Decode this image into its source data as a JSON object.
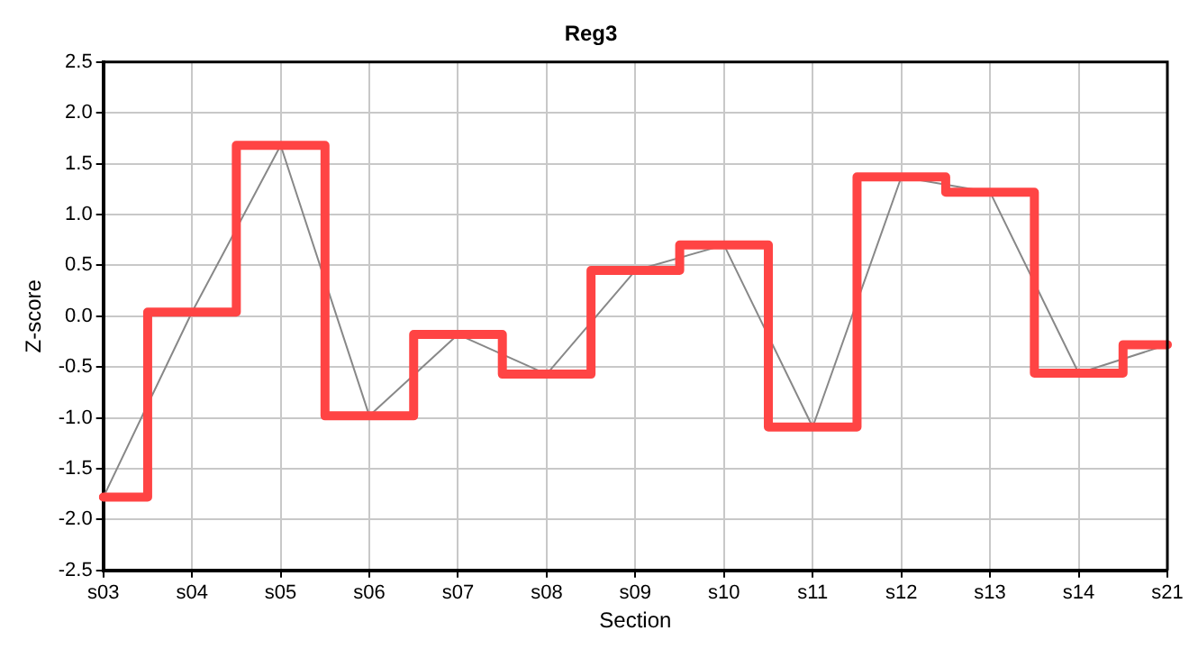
{
  "chart_data": {
    "type": "step",
    "title": "Reg3",
    "xlabel": "Section",
    "ylabel": "Z-score",
    "categories": [
      "s03",
      "s04",
      "s05",
      "s06",
      "s07",
      "s08",
      "s09",
      "s10",
      "s11",
      "s12",
      "s13",
      "s14",
      "s21"
    ],
    "series": [
      {
        "type": "line",
        "color": "#888888",
        "values": [
          -1.78,
          0.04,
          1.68,
          -0.98,
          -0.18,
          -0.57,
          0.45,
          0.7,
          -1.09,
          1.37,
          1.22,
          -0.56,
          -0.28
        ]
      },
      {
        "color": "#ff4444",
        "values": [
          -1.78,
          0.04,
          1.68,
          -0.98,
          -0.18,
          -0.57,
          0.45,
          0.7,
          -1.09,
          1.37,
          1.22,
          -0.56,
          -0.28
        ]
      }
    ],
    "ylim": [
      -2.5,
      2.5
    ],
    "yticks": [
      -2.5,
      {
        "value": -2,
        "label": "-2.0"
      },
      -1.5,
      {
        "value": -1,
        "label": "-1.0"
      },
      -0.5,
      {
        "value": 0,
        "label": "0.0"
      },
      0.5,
      {
        "value": 1,
        "label": "1.0"
      },
      1.5,
      {
        "value": 2,
        "label": "2.0"
      },
      2.5
    ],
    "grid": true,
    "legend": false,
    "marker": "none"
  }
}
